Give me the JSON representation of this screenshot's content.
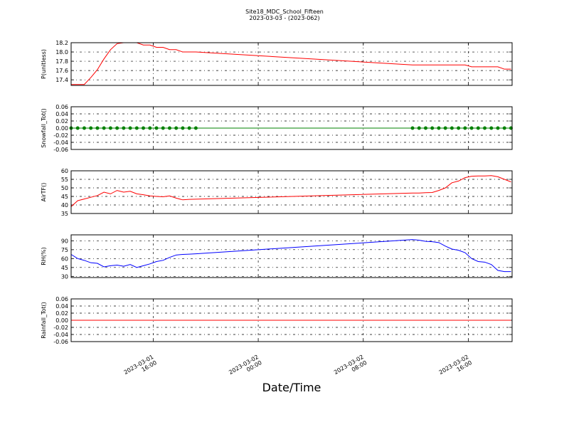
{
  "chart_data": [
    {
      "type": "line",
      "title": "Site18_MDC_School_Fifteen",
      "subtitle": "2023-03-03 - (2023-062)",
      "ylabel": "P(unitless)",
      "color": "#ff0000",
      "grid": true,
      "x": [
        "2023-03-01T09:45",
        "2023-03-01T10:15",
        "2023-03-01T10:45",
        "2023-03-01T11:15",
        "2023-03-01T11:45",
        "2023-03-01T12:15",
        "2023-03-01T12:45",
        "2023-03-01T13:15",
        "2023-03-01T13:45",
        "2023-03-01T14:15",
        "2023-03-01T14:45",
        "2023-03-01T15:15",
        "2023-03-01T15:45",
        "2023-03-01T16:15",
        "2023-03-01T16:45",
        "2023-03-01T17:15",
        "2023-03-01T17:45",
        "2023-03-01T18:15",
        "2023-03-01T18:45",
        "2023-03-01T19:15",
        "2023-03-02T11:45",
        "2023-03-02T12:15",
        "2023-03-02T12:45",
        "2023-03-02T13:15",
        "2023-03-02T13:45",
        "2023-03-02T14:15",
        "2023-03-02T14:45",
        "2023-03-02T15:15",
        "2023-03-02T15:45",
        "2023-03-02T16:15",
        "2023-03-02T16:45",
        "2023-03-02T17:15",
        "2023-03-02T17:45",
        "2023-03-02T18:15",
        "2023-03-02T18:45",
        "2023-03-02T19:15"
      ],
      "values": [
        17.3,
        17.3,
        17.3,
        17.45,
        17.62,
        17.85,
        18.05,
        18.18,
        18.2,
        18.2,
        18.2,
        18.15,
        18.15,
        18.1,
        18.1,
        18.05,
        18.05,
        18.0,
        18.0,
        18.0,
        17.72,
        17.72,
        17.72,
        17.72,
        17.72,
        17.72,
        17.72,
        17.72,
        17.72,
        17.68,
        17.68,
        17.68,
        17.68,
        17.68,
        17.63,
        17.63
      ],
      "xlim": [
        "2023-03-01T09:45",
        "2023-03-02T19:20"
      ],
      "xticks": [
        "2023-03-01T16:00",
        "2023-03-02T00:00",
        "2023-03-02T08:00",
        "2023-03-02T16:00"
      ],
      "ylim": [
        17.28,
        18.2
      ],
      "yticks": [
        17.4,
        17.6,
        17.8,
        {
          "value": 18,
          "label": "18.0"
        },
        18.2
      ]
    },
    {
      "type": "line",
      "ylabel": "Snowfall_Tot()",
      "color": "#008000",
      "markers": true,
      "grid": true,
      "x": [
        "2023-03-01T09:45",
        "2023-03-01T10:15",
        "2023-03-01T10:45",
        "2023-03-01T11:15",
        "2023-03-01T11:45",
        "2023-03-01T12:15",
        "2023-03-01T12:45",
        "2023-03-01T13:15",
        "2023-03-01T13:45",
        "2023-03-01T14:15",
        "2023-03-01T14:45",
        "2023-03-01T15:15",
        "2023-03-01T15:45",
        "2023-03-01T16:15",
        "2023-03-01T16:45",
        "2023-03-01T17:15",
        "2023-03-01T17:45",
        "2023-03-01T18:15",
        "2023-03-01T18:45",
        "2023-03-01T19:15",
        "2023-03-02T11:45",
        "2023-03-02T12:15",
        "2023-03-02T12:45",
        "2023-03-02T13:15",
        "2023-03-02T13:45",
        "2023-03-02T14:15",
        "2023-03-02T14:45",
        "2023-03-02T15:15",
        "2023-03-02T15:45",
        "2023-03-02T16:15",
        "2023-03-02T16:45",
        "2023-03-02T17:15",
        "2023-03-02T17:45",
        "2023-03-02T18:15",
        "2023-03-02T18:45",
        "2023-03-02T19:15"
      ],
      "values": [
        0,
        0,
        0,
        0,
        0,
        0,
        0,
        0,
        0,
        0,
        0,
        0,
        0,
        0,
        0,
        0,
        0,
        0,
        0,
        0,
        0,
        0,
        0,
        0,
        0,
        0,
        0,
        0,
        0,
        0,
        0,
        0,
        0,
        0,
        0,
        0
      ],
      "xlim": [
        "2023-03-01T09:45",
        "2023-03-02T19:20"
      ],
      "xticks": [
        "2023-03-01T16:00",
        "2023-03-02T00:00",
        "2023-03-02T08:00",
        "2023-03-02T16:00"
      ],
      "ylim": [
        -0.06,
        0.06
      ],
      "yticks": [
        -0.06,
        -0.04,
        -0.02,
        {
          "value": 0,
          "label": "0.00"
        },
        0.02,
        0.04,
        0.06
      ]
    },
    {
      "type": "line",
      "ylabel": "AirTF()",
      "color": "#ff0000",
      "grid": true,
      "x": [
        "2023-03-01T09:45",
        "2023-03-01T10:15",
        "2023-03-01T10:45",
        "2023-03-01T11:15",
        "2023-03-01T11:45",
        "2023-03-01T12:15",
        "2023-03-01T12:45",
        "2023-03-01T13:15",
        "2023-03-01T13:45",
        "2023-03-01T14:15",
        "2023-03-01T14:45",
        "2023-03-01T15:15",
        "2023-03-01T15:45",
        "2023-03-01T16:15",
        "2023-03-01T16:45",
        "2023-03-01T17:15",
        "2023-03-01T17:45",
        "2023-03-01T18:15",
        "2023-03-01T18:45",
        "2023-03-01T19:15",
        "2023-03-02T11:45",
        "2023-03-02T12:15",
        "2023-03-02T12:45",
        "2023-03-02T13:15",
        "2023-03-02T13:45",
        "2023-03-02T14:15",
        "2023-03-02T14:45",
        "2023-03-02T15:15",
        "2023-03-02T15:45",
        "2023-03-02T16:15",
        "2023-03-02T16:45",
        "2023-03-02T17:15",
        "2023-03-02T17:45",
        "2023-03-02T18:15",
        "2023-03-02T18:45",
        "2023-03-02T19:15"
      ],
      "values": [
        39,
        42.5,
        43.5,
        44.5,
        45.5,
        47.5,
        46.5,
        48.5,
        47.5,
        48,
        46.5,
        46,
        45.3,
        45,
        44.8,
        45.3,
        44,
        43,
        43.3,
        43.4,
        47,
        47,
        47.2,
        47.3,
        48.5,
        50,
        53,
        54,
        56,
        56.8,
        57,
        57,
        57.2,
        56.5,
        55,
        53.5
      ],
      "xlim": [
        "2023-03-01T09:45",
        "2023-03-02T19:20"
      ],
      "xticks": [
        "2023-03-01T16:00",
        "2023-03-02T00:00",
        "2023-03-02T08:00",
        "2023-03-02T16:00"
      ],
      "ylim": [
        35,
        60
      ],
      "yticks": [
        35,
        40,
        45,
        50,
        55,
        60
      ]
    },
    {
      "type": "line",
      "ylabel": "RH(%)",
      "color": "#0000ff",
      "grid": true,
      "x": [
        "2023-03-01T09:45",
        "2023-03-01T10:15",
        "2023-03-01T10:45",
        "2023-03-01T11:15",
        "2023-03-01T11:45",
        "2023-03-01T12:15",
        "2023-03-01T12:45",
        "2023-03-01T13:15",
        "2023-03-01T13:45",
        "2023-03-01T14:15",
        "2023-03-01T14:45",
        "2023-03-01T15:15",
        "2023-03-01T15:45",
        "2023-03-01T16:15",
        "2023-03-01T16:45",
        "2023-03-01T17:15",
        "2023-03-01T17:45",
        "2023-03-01T18:15",
        "2023-03-01T18:45",
        "2023-03-01T19:15",
        "2023-03-02T11:45",
        "2023-03-02T12:15",
        "2023-03-02T12:45",
        "2023-03-02T13:15",
        "2023-03-02T13:45",
        "2023-03-02T14:15",
        "2023-03-02T14:45",
        "2023-03-02T15:15",
        "2023-03-02T15:45",
        "2023-03-02T16:15",
        "2023-03-02T16:45",
        "2023-03-02T17:15",
        "2023-03-02T17:45",
        "2023-03-02T18:15",
        "2023-03-02T18:45",
        "2023-03-02T19:15"
      ],
      "values": [
        67,
        60,
        57,
        53,
        52,
        46,
        48,
        49,
        47,
        50,
        45,
        48,
        51,
        55,
        57,
        62,
        66,
        67,
        67.5,
        68,
        92,
        91,
        89,
        88.5,
        87,
        81,
        76,
        74,
        70,
        60,
        55,
        54,
        50,
        40,
        38,
        38
      ],
      "xlim": [
        "2023-03-01T09:45",
        "2023-03-02T19:20"
      ],
      "xticks": [
        "2023-03-01T16:00",
        "2023-03-02T00:00",
        "2023-03-02T08:00",
        "2023-03-02T16:00"
      ],
      "ylim": [
        28,
        100
      ],
      "yticks": [
        30,
        45,
        60,
        75,
        90
      ]
    },
    {
      "type": "line",
      "ylabel": "Rainfall_Tot()",
      "xlabel": "Date/Time",
      "color": "#ff0000",
      "grid": true,
      "x": [
        "2023-03-01T09:45",
        "2023-03-01T10:15",
        "2023-03-01T10:45",
        "2023-03-01T11:15",
        "2023-03-01T11:45",
        "2023-03-01T12:15",
        "2023-03-01T12:45",
        "2023-03-01T13:15",
        "2023-03-01T13:45",
        "2023-03-01T14:15",
        "2023-03-01T14:45",
        "2023-03-01T15:15",
        "2023-03-01T15:45",
        "2023-03-01T16:15",
        "2023-03-01T16:45",
        "2023-03-01T17:15",
        "2023-03-01T17:45",
        "2023-03-01T18:15",
        "2023-03-01T18:45",
        "2023-03-01T19:15",
        "2023-03-02T11:45",
        "2023-03-02T12:15",
        "2023-03-02T12:45",
        "2023-03-02T13:15",
        "2023-03-02T13:45",
        "2023-03-02T14:15",
        "2023-03-02T14:45",
        "2023-03-02T15:15",
        "2023-03-02T15:45",
        "2023-03-02T16:15",
        "2023-03-02T16:45",
        "2023-03-02T17:15",
        "2023-03-02T17:45",
        "2023-03-02T18:15",
        "2023-03-02T18:45",
        "2023-03-02T19:15"
      ],
      "values": [
        0,
        0,
        0,
        0,
        0,
        0,
        0,
        0,
        0,
        0,
        0,
        0,
        0,
        0,
        0,
        0,
        0,
        0,
        0,
        0,
        0,
        0,
        0,
        0,
        0,
        0,
        0,
        0,
        0,
        0,
        0,
        0,
        0,
        0,
        0,
        0
      ],
      "xlim": [
        "2023-03-01T09:45",
        "2023-03-02T19:20"
      ],
      "xticks": [
        {
          "value": "2023-03-01T16:00",
          "label": "2023-03-01\n16:00"
        },
        {
          "value": "2023-03-02T00:00",
          "label": "2023-03-02\n00:00"
        },
        {
          "value": "2023-03-02T08:00",
          "label": "2023-03-02\n08:00"
        },
        {
          "value": "2023-03-02T16:00",
          "label": "2023-03-02\n16:00"
        }
      ],
      "ylim": [
        -0.06,
        0.06
      ],
      "yticks": [
        -0.06,
        -0.04,
        -0.02,
        {
          "value": 0,
          "label": "0.00"
        },
        0.02,
        0.04,
        0.06
      ]
    }
  ]
}
